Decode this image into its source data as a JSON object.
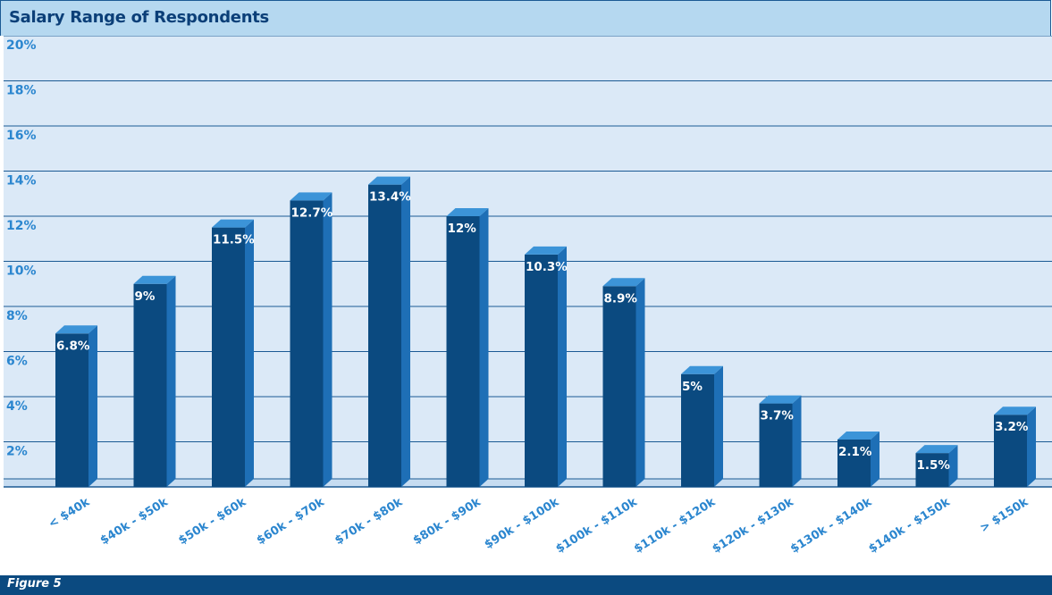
{
  "chart_data": {
    "type": "bar",
    "title": "Salary Range of Respondents",
    "caption": "Figure 5",
    "xlabel": "",
    "ylabel": "",
    "categories": [
      "< $40k",
      "$40k - $50k",
      "$50k - $60k",
      "$60k - $70k",
      "$70k - $80k",
      "$80k - $90k",
      "$90k - $100k",
      "$100k - $110k",
      "$110k - $120k",
      "$120k - $130k",
      "$130k - $140k",
      "$140k - $150k",
      "> $150k"
    ],
    "values": [
      6.8,
      9,
      11.5,
      12.7,
      13.4,
      12,
      10.3,
      8.9,
      5,
      3.7,
      2.1,
      1.5,
      3.2
    ],
    "data_labels": [
      "6.8%",
      "9%",
      "11.5%",
      "12.7%",
      "13.4%",
      "12%",
      "10.3%",
      "8.9%",
      "5%",
      "3.7%",
      "2.1%",
      "1.5%",
      "3.2%"
    ],
    "yticks": [
      2,
      4,
      6,
      8,
      10,
      12,
      14,
      16,
      18,
      20
    ],
    "ytick_labels": [
      "2%",
      "4%",
      "6%",
      "8%",
      "10%",
      "12%",
      "14%",
      "16%",
      "18%",
      "20%"
    ],
    "ylim": [
      0,
      20
    ],
    "grid": true,
    "legend": "none",
    "colors": {
      "bar_front": "#0b4a80",
      "bar_side": "#1e6fb6",
      "bar_top": "#3c94d8",
      "plot_bg": "#dbe9f7",
      "gridline": "#1b5a94",
      "title_bg": "#b5d8f0",
      "tick_text": "#2b86cf"
    }
  }
}
